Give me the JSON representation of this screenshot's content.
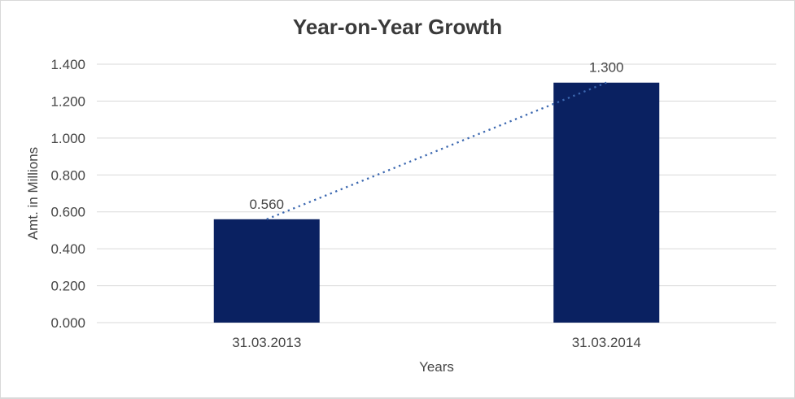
{
  "chart_data": {
    "type": "bar",
    "title": "Year-on-Year Growth",
    "xlabel": "Years",
    "ylabel": "Amt. in Millions",
    "categories": [
      "31.03.2013",
      "31.03.2014"
    ],
    "values": [
      0.56,
      1.3
    ],
    "data_labels": [
      "0.560",
      "1.300"
    ],
    "y_ticks": [
      "0.000",
      "0.200",
      "0.400",
      "0.600",
      "0.800",
      "1.000",
      "1.200",
      "1.400"
    ],
    "ylim": [
      0,
      1.4
    ],
    "grid": true,
    "legend": "none",
    "bar_color": "#0A2161",
    "trendline": {
      "type": "linear",
      "style": "dotted",
      "color": "#3C68B0"
    },
    "gridline_color": "#D9D9D9",
    "border_color": "#D9D9D9",
    "text_color": "#454545",
    "title_color": "#3A3A3A",
    "background": "#FFFFFF"
  }
}
